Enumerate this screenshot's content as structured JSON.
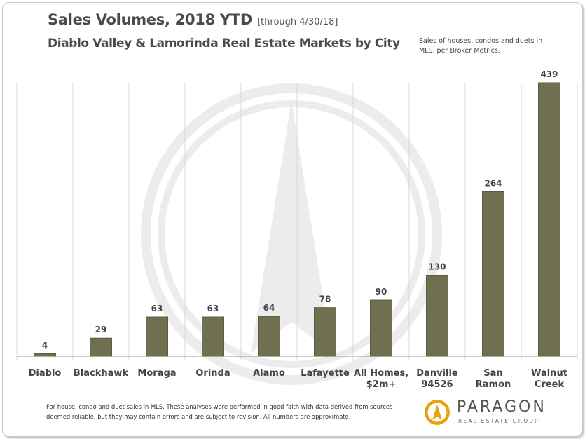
{
  "header": {
    "title": "Sales Volumes, 2018 YTD",
    "title_note": "[through 4/30/18]",
    "subtitle": "Diablo Valley & Lamorinda Real Estate Markets by City",
    "source_note": "Sales of houses, condos and duets in MLS, per Broker Metrics."
  },
  "footnote": "For house, condo and duet sales in MLS. These analyses were performed in good faith with data derived from sources deemed reliable, but they may contain errors and are subject to revision.  All numbers are approximate.",
  "logo": {
    "name": "PARAGON",
    "tagline": "REAL ESTATE GROUP",
    "icon": "paragon-logo-icon",
    "color": "#e8a20c"
  },
  "colors": {
    "bar": "#707050",
    "bar_stroke": "#5a5a3e",
    "grid": "#d8d8d8",
    "watermark": "#ececec"
  },
  "chart_data": {
    "type": "bar",
    "categories": [
      [
        "Diablo"
      ],
      [
        "Blackhawk"
      ],
      [
        "Moraga"
      ],
      [
        "Orinda"
      ],
      [
        "Alamo"
      ],
      [
        "Lafayette"
      ],
      [
        "All Homes,",
        "$2m+"
      ],
      [
        "Danville",
        "94526"
      ],
      [
        "San",
        "Ramon"
      ],
      [
        "Walnut",
        "Creek"
      ]
    ],
    "values": [
      4,
      29,
      63,
      63,
      64,
      78,
      90,
      130,
      264,
      439
    ],
    "ylim": [
      0,
      439
    ],
    "title": "Sales Volumes, 2018 YTD",
    "xlabel": "",
    "ylabel": "",
    "grid": "vertical separators between categories",
    "data_labels": true
  }
}
